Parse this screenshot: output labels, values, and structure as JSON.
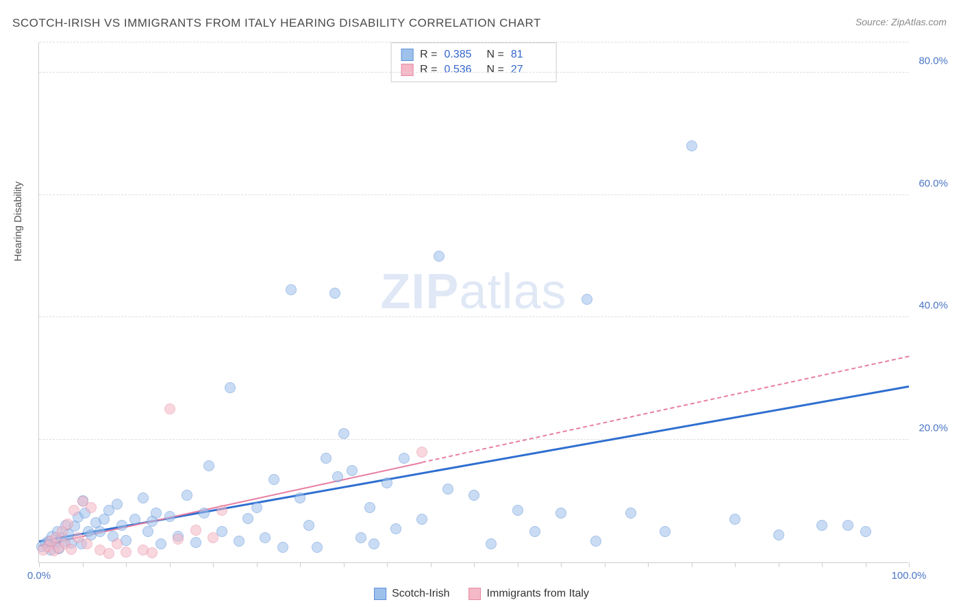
{
  "title": "SCOTCH-IRISH VS IMMIGRANTS FROM ITALY HEARING DISABILITY CORRELATION CHART",
  "source_prefix": "Source: ",
  "source_name": "ZipAtlas.com",
  "watermark_bold": "ZIP",
  "watermark_light": "atlas",
  "yaxis_label": "Hearing Disability",
  "chart": {
    "type": "scatter",
    "xlim": [
      0,
      100
    ],
    "ylim": [
      0,
      85
    ],
    "x_ticks_minor_step": 5,
    "y_gridlines": [
      20,
      40,
      60,
      80
    ],
    "y_tick_labels": [
      "20.0%",
      "40.0%",
      "60.0%",
      "80.0%"
    ],
    "x_tick_labels": {
      "0": "0.0%",
      "100": "100.0%"
    },
    "background_color": "#ffffff",
    "grid_color": "#dcdcdc",
    "axis_color": "#cccccc",
    "tick_label_color": "#4a75c5",
    "marker_radius": 8,
    "marker_opacity": 0.55,
    "series": [
      {
        "key": "scotch_irish",
        "label": "Scotch-Irish",
        "color_fill": "#9ec1ec",
        "color_stroke": "#5a8fd6",
        "R": "0.385",
        "N": "81",
        "trend": {
          "x1": 0,
          "y1": 3.2,
          "x2": 100,
          "y2": 28.5,
          "width": 3,
          "color": "#2f6fd0",
          "dashed": false,
          "dash_from_x": null
        },
        "points": [
          [
            0.3,
            2.6
          ],
          [
            0.8,
            3.1
          ],
          [
            1.1,
            3.5
          ],
          [
            1.3,
            2.0
          ],
          [
            1.5,
            4.2
          ],
          [
            1.8,
            3.0
          ],
          [
            2.1,
            5.0
          ],
          [
            2.3,
            2.2
          ],
          [
            2.6,
            4.0
          ],
          [
            2.9,
            3.4
          ],
          [
            3.1,
            6.0
          ],
          [
            3.4,
            4.6
          ],
          [
            3.7,
            3.1
          ],
          [
            4.1,
            5.9
          ],
          [
            4.5,
            7.4
          ],
          [
            4.9,
            3.0
          ],
          [
            5.3,
            8.0
          ],
          [
            5.7,
            5.0
          ],
          [
            5.0,
            10.1
          ],
          [
            6.0,
            4.5
          ],
          [
            6.5,
            6.5
          ],
          [
            7.0,
            5.0
          ],
          [
            7.5,
            7.0
          ],
          [
            8.0,
            8.5
          ],
          [
            8.5,
            4.2
          ],
          [
            9.0,
            9.5
          ],
          [
            9.5,
            6.0
          ],
          [
            10.0,
            3.6
          ],
          [
            11.0,
            7.0
          ],
          [
            12.0,
            10.5
          ],
          [
            12.5,
            5.0
          ],
          [
            13.0,
            6.7
          ],
          [
            13.5,
            8.0
          ],
          [
            14.0,
            3.0
          ],
          [
            15.0,
            7.5
          ],
          [
            16.0,
            4.2
          ],
          [
            17.0,
            11.0
          ],
          [
            18.0,
            3.2
          ],
          [
            19.0,
            8.0
          ],
          [
            19.5,
            15.8
          ],
          [
            21.0,
            5.0
          ],
          [
            22.0,
            28.5
          ],
          [
            23.0,
            3.5
          ],
          [
            24.0,
            7.2
          ],
          [
            25.0,
            9.0
          ],
          [
            26.0,
            4.0
          ],
          [
            27.0,
            13.5
          ],
          [
            28.0,
            2.5
          ],
          [
            29.0,
            44.5
          ],
          [
            30.0,
            10.5
          ],
          [
            31.0,
            6.0
          ],
          [
            32.0,
            2.5
          ],
          [
            33.0,
            17.0
          ],
          [
            34.0,
            44.0
          ],
          [
            34.3,
            14
          ],
          [
            35.0,
            21.0
          ],
          [
            36.0,
            15.0
          ],
          [
            37.0,
            4.0
          ],
          [
            38.0,
            9.0
          ],
          [
            40.0,
            13.0
          ],
          [
            41.0,
            5.5
          ],
          [
            42.0,
            17.0
          ],
          [
            44.0,
            7.0
          ],
          [
            46.0,
            50.0
          ],
          [
            47.0,
            12.0
          ],
          [
            50.0,
            11.0
          ],
          [
            52.0,
            3.0
          ],
          [
            55.0,
            8.5
          ],
          [
            57.0,
            5.0
          ],
          [
            60.0,
            8.0
          ],
          [
            63.0,
            43.0
          ],
          [
            64.0,
            3.5
          ],
          [
            68.0,
            8.0
          ],
          [
            72.0,
            5.0
          ],
          [
            75.0,
            68.0
          ],
          [
            80.0,
            7.0
          ],
          [
            85.0,
            4.5
          ],
          [
            90.0,
            6.0
          ],
          [
            93.0,
            6.0
          ],
          [
            95.0,
            5.0
          ],
          [
            38.5,
            3.0
          ]
        ]
      },
      {
        "key": "immigrants_italy",
        "label": "Immigrants from Italy",
        "color_fill": "#f4b8c6",
        "color_stroke": "#e68aa3",
        "R": "0.536",
        "N": "27",
        "trend": {
          "x1": 0,
          "y1": 2.6,
          "x2": 100,
          "y2": 33.5,
          "width": 2,
          "color": "#e77ea0",
          "dashed": true,
          "dash_from_x": 44
        },
        "points": [
          [
            0.5,
            2.0
          ],
          [
            1.0,
            2.6
          ],
          [
            1.3,
            3.5
          ],
          [
            1.7,
            1.9
          ],
          [
            2.0,
            4.0
          ],
          [
            2.3,
            2.3
          ],
          [
            2.7,
            5.0
          ],
          [
            3.0,
            3.0
          ],
          [
            3.3,
            6.3
          ],
          [
            3.7,
            2.1
          ],
          [
            4.0,
            8.5
          ],
          [
            4.5,
            4.0
          ],
          [
            5.0,
            10.0
          ],
          [
            5.5,
            3.0
          ],
          [
            6.0,
            9.0
          ],
          [
            7.0,
            2.0
          ],
          [
            8.0,
            1.5
          ],
          [
            9.0,
            3.0
          ],
          [
            10.0,
            1.7
          ],
          [
            12.0,
            2.0
          ],
          [
            13.0,
            1.6
          ],
          [
            15.0,
            25.0
          ],
          [
            16.0,
            3.8
          ],
          [
            18.0,
            5.3
          ],
          [
            20.0,
            4.0
          ],
          [
            21.0,
            8.5
          ],
          [
            44.0,
            18.0
          ]
        ]
      }
    ]
  },
  "stats_box": {
    "r_label": "R =",
    "n_label": "N ="
  }
}
